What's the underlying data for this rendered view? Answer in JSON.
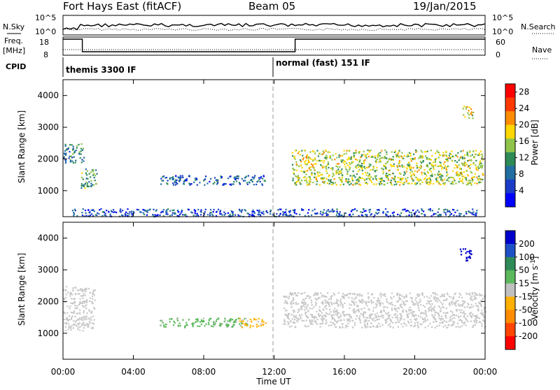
{
  "header": {
    "station": "Fort Hays East (fitACF)",
    "beam": "Beam 05",
    "date": "19/Jan/2015"
  },
  "top_panels": {
    "nsky_label": "N.Sky",
    "nsearch_label": "N.Search",
    "freq_label_1": "Freq.",
    "freq_label_2": "[MHz]",
    "nave_label": "Nave",
    "cpid_label": "CPID",
    "noise_ticks_left": [
      "10^5",
      "10^0"
    ],
    "noise_ticks_right": [
      "10^5",
      "10^0"
    ],
    "freq_ticks_left": [
      "18",
      "8"
    ],
    "nave_ticks_right": [
      "60",
      "0"
    ]
  },
  "cpid_segments": [
    {
      "start_hour": 0,
      "label": "themis 3300 IF"
    },
    {
      "start_hour": 12,
      "label": "normal (fast) 151 IF"
    }
  ],
  "chart_data": [
    {
      "type": "heatmap",
      "title": "",
      "quantity": "Power",
      "colorbar_label": "Power [dB]",
      "xlabel": "",
      "ylabel": "Slant Range [km]",
      "xlim_hours": [
        0,
        24
      ],
      "ylim_km": [
        180,
        4500
      ],
      "ytick_values": [
        1000,
        2000,
        3000,
        4000
      ],
      "colorbar_ticks": [
        4,
        8,
        12,
        16,
        20,
        24,
        28
      ],
      "colorbar_range": [
        0,
        30
      ],
      "colors": [
        "#0000ff",
        "#1a3cc8",
        "#226ea0",
        "#2e8b57",
        "#90c44a",
        "#ffd700",
        "#ff8c00",
        "#ff3a00",
        "#ff0000"
      ],
      "regions": [
        {
          "name": "early scatter 00-01 UT",
          "t0": 0.0,
          "t1": 1.2,
          "r0": 1900,
          "r1": 2500,
          "value": 10
        },
        {
          "name": "post-01 UT patch",
          "t0": 1.0,
          "t1": 1.9,
          "r0": 1100,
          "r1": 1700,
          "value": 12
        },
        {
          "name": "mid-range echoes 05-11.5 UT",
          "t0": 5.5,
          "t1": 11.5,
          "r0": 1200,
          "r1": 1500,
          "value": 7
        },
        {
          "name": "evening band 13-24 UT",
          "t0": 13.0,
          "t1": 23.9,
          "r0": 1200,
          "r1": 2300,
          "value": 16
        },
        {
          "name": "near-range clutter",
          "t0": 0.5,
          "t1": 23.5,
          "r0": 200,
          "r1": 450,
          "value": 6
        },
        {
          "name": "late high-range patch",
          "t0": 22.7,
          "t1": 23.3,
          "r0": 3300,
          "r1": 3700,
          "value": 18
        }
      ]
    },
    {
      "type": "heatmap",
      "title": "",
      "quantity": "Velocity",
      "colorbar_label": "Velocity [m s^-1]",
      "xlabel": "Time UT",
      "ylabel": "Slant Range [km]",
      "xlim_hours": [
        0,
        24
      ],
      "ylim_km": [
        180,
        4500
      ],
      "ytick_values": [
        1000,
        2000,
        3000,
        4000
      ],
      "xtick_labels": [
        "00:00",
        "04:00",
        "08:00",
        "12:00",
        "16:00",
        "20:00",
        "00:00"
      ],
      "colorbar_ticks": [
        200,
        100,
        50,
        15,
        -15,
        -50,
        -100,
        -200
      ],
      "colorbar_range": [
        -250,
        250
      ],
      "colors": [
        "#0000cd",
        "#1e50c8",
        "#2e8b57",
        "#5cb85c",
        "#c0c0c0",
        "#ffb000",
        "#ff8c00",
        "#ff4500",
        "#ff0000"
      ],
      "regions": [
        {
          "name": "ground scatter 00-02 UT",
          "t0": 0.0,
          "t1": 1.8,
          "r0": 1100,
          "r1": 2500,
          "value": 0
        },
        {
          "name": "positive velocity band 05-11.5 UT",
          "t0": 5.5,
          "t1": 10.5,
          "r0": 1200,
          "r1": 1500,
          "value": 40
        },
        {
          "name": "negative velocity band 10-11.5 UT",
          "t0": 10.0,
          "t1": 11.5,
          "r0": 1200,
          "r1": 1500,
          "value": -40
        },
        {
          "name": "evening ground scatter 12-24 UT",
          "t0": 12.5,
          "t1": 24.0,
          "r0": 1200,
          "r1": 2300,
          "value": 0
        },
        {
          "name": "high-range positive flow",
          "t0": 22.5,
          "t1": 23.2,
          "r0": 3300,
          "r1": 3700,
          "value": 220
        }
      ]
    }
  ]
}
